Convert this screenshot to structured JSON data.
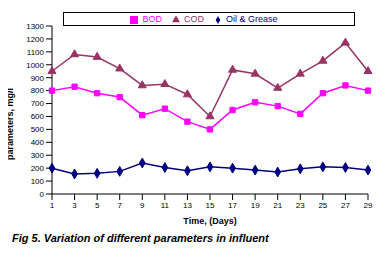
{
  "chart_data": {
    "type": "line",
    "title": "Fig 5. Variation of different parameters in influent",
    "x_label": "Time, (Days)",
    "y_label": "parameters, mg/l",
    "categories": [
      "1",
      "3",
      "5",
      "7",
      "9",
      "11",
      "13",
      "15",
      "17",
      "19",
      "21",
      "23",
      "25",
      "27",
      "29"
    ],
    "series": [
      {
        "name": "Oil & Grease",
        "color": "#000080",
        "marker": "diamond",
        "values": [
          200,
          155,
          160,
          175,
          240,
          205,
          180,
          210,
          200,
          185,
          170,
          195,
          210,
          205,
          185
        ]
      },
      {
        "name": "BOD",
        "color": "#ff00ff",
        "marker": "square",
        "values": [
          800,
          830,
          780,
          750,
          610,
          660,
          560,
          500,
          650,
          710,
          680,
          620,
          780,
          840,
          800
        ]
      },
      {
        "name": "COD",
        "color": "#993366",
        "marker": "triangle",
        "values": [
          950,
          1080,
          1060,
          970,
          840,
          850,
          770,
          600,
          960,
          930,
          820,
          930,
          1030,
          1170,
          950
        ]
      }
    ],
    "ylim": [
      0,
      1300
    ],
    "yticks": [
      0,
      100,
      200,
      300,
      400,
      500,
      600,
      700,
      800,
      900,
      1000,
      1100,
      1200,
      1300
    ],
    "grid": false,
    "legend": "top"
  }
}
